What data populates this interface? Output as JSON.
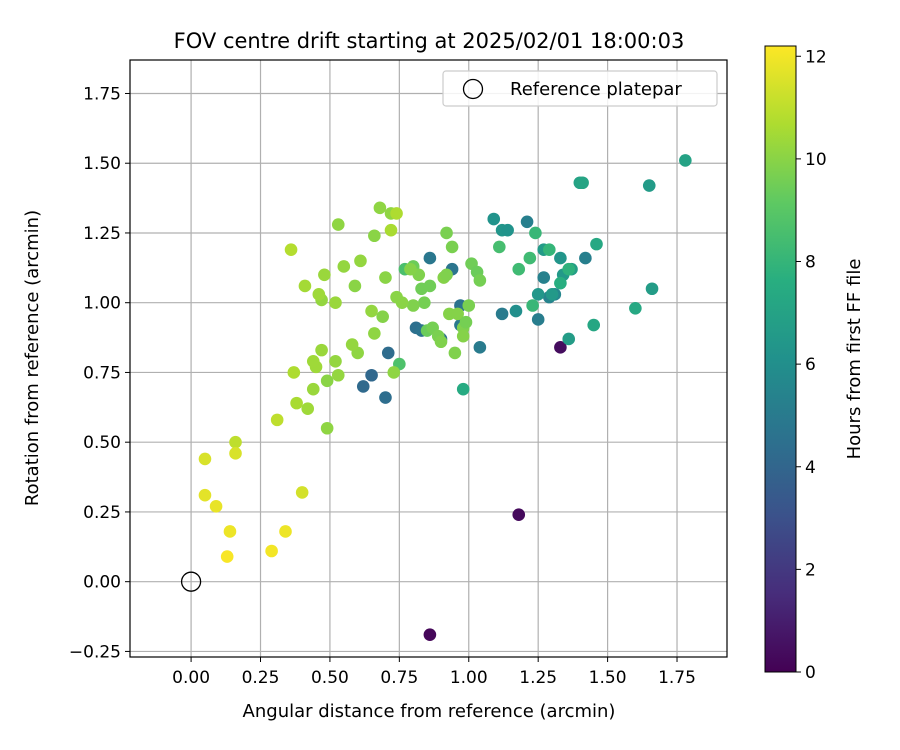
{
  "chart_data": {
    "type": "scatter",
    "title": "FOV centre drift starting at 2025/02/01 18:00:03",
    "xlabel": "Angular distance from reference (arcmin)",
    "ylabel": "Rotation from reference (arcmin)",
    "xlim": [
      -0.22,
      1.93
    ],
    "ylim": [
      -0.27,
      1.87
    ],
    "xticks": [
      0.0,
      0.25,
      0.5,
      0.75,
      1.0,
      1.25,
      1.5,
      1.75
    ],
    "xtick_labels": [
      "0.00",
      "0.25",
      "0.50",
      "0.75",
      "1.00",
      "1.25",
      "1.50",
      "1.75"
    ],
    "yticks": [
      -0.25,
      0.0,
      0.25,
      0.5,
      0.75,
      1.0,
      1.25,
      1.5,
      1.75
    ],
    "ytick_labels": [
      "−0.25",
      "0.00",
      "0.25",
      "0.50",
      "0.75",
      "1.00",
      "1.25",
      "1.50",
      "1.75"
    ],
    "grid": true,
    "legend": {
      "placement": "top-right",
      "entries": [
        "Reference platepar"
      ]
    },
    "reference_point": {
      "x": 0.0,
      "y": 0.0,
      "label": "Reference platepar"
    },
    "colorbar": {
      "label": "Hours from first FF file",
      "range": [
        0,
        12.2
      ],
      "ticks": [
        0,
        2,
        4,
        6,
        8,
        10,
        12
      ],
      "tick_labels": [
        "0",
        "2",
        "4",
        "6",
        "8",
        "10",
        "12"
      ],
      "colormap": "viridis"
    },
    "series": [
      {
        "color_by": "hours",
        "points": [
          [
            0.86,
            -0.19,
            0.2
          ],
          [
            1.18,
            0.24,
            0.3
          ],
          [
            1.33,
            0.84,
            0.4
          ],
          [
            0.62,
            0.7,
            4.2
          ],
          [
            0.65,
            0.74,
            4.1
          ],
          [
            0.7,
            0.66,
            4.4
          ],
          [
            0.71,
            0.82,
            4.3
          ],
          [
            0.81,
            0.91,
            4.5
          ],
          [
            0.83,
            0.9,
            4.6
          ],
          [
            0.86,
            1.16,
            4.8
          ],
          [
            0.9,
            0.87,
            4.5
          ],
          [
            0.94,
            1.12,
            4.7
          ],
          [
            0.97,
            0.99,
            4.6
          ],
          [
            0.97,
            0.92,
            4.9
          ],
          [
            1.04,
            0.84,
            5.0
          ],
          [
            1.12,
            0.96,
            5.0
          ],
          [
            1.21,
            1.29,
            5.2
          ],
          [
            1.25,
            0.94,
            5.1
          ],
          [
            1.27,
            1.09,
            5.3
          ],
          [
            1.29,
            1.02,
            5.4
          ],
          [
            1.31,
            1.03,
            5.6
          ],
          [
            1.42,
            1.16,
            5.2
          ],
          [
            1.09,
            1.3,
            6.2
          ],
          [
            1.12,
            1.26,
            6.3
          ],
          [
            1.14,
            1.26,
            6.2
          ],
          [
            1.17,
            0.97,
            6.0
          ],
          [
            1.25,
            1.03,
            6.4
          ],
          [
            1.27,
            1.19,
            6.6
          ],
          [
            1.3,
            1.03,
            6.5
          ],
          [
            1.33,
            1.16,
            6.3
          ],
          [
            1.34,
            1.1,
            6.5
          ],
          [
            1.36,
            0.87,
            6.7
          ],
          [
            1.37,
            1.12,
            6.8
          ],
          [
            1.4,
            1.43,
            7.0
          ],
          [
            1.41,
            1.43,
            7.1
          ],
          [
            1.45,
            0.92,
            7.2
          ],
          [
            1.46,
            1.21,
            7.3
          ],
          [
            1.6,
            0.98,
            7.3
          ],
          [
            1.65,
            1.42,
            6.6
          ],
          [
            1.66,
            1.05,
            6.7
          ],
          [
            1.78,
            1.51,
            7.0
          ],
          [
            0.98,
            0.69,
            7.4
          ],
          [
            1.33,
            1.07,
            7.6
          ],
          [
            1.36,
            1.12,
            7.8
          ],
          [
            1.29,
            1.19,
            8.0
          ],
          [
            1.24,
            1.25,
            8.1
          ],
          [
            1.22,
            1.16,
            8.3
          ],
          [
            1.18,
            1.12,
            8.3
          ],
          [
            1.23,
            0.99,
            8.1
          ],
          [
            1.11,
            1.2,
            8.5
          ],
          [
            0.77,
            1.12,
            8.6
          ],
          [
            0.75,
            0.78,
            8.7
          ],
          [
            0.8,
            1.13,
            9.4
          ],
          [
            0.83,
            1.05,
            9.5
          ],
          [
            0.84,
            1.0,
            9.6
          ],
          [
            0.85,
            0.9,
            9.4
          ],
          [
            0.86,
            1.06,
            9.5
          ],
          [
            0.87,
            0.91,
            9.6
          ],
          [
            0.89,
            0.88,
            9.7
          ],
          [
            0.9,
            0.86,
            9.8
          ],
          [
            0.91,
            1.09,
            9.9
          ],
          [
            0.92,
            1.1,
            9.8
          ],
          [
            0.93,
            0.96,
            9.9
          ],
          [
            0.94,
            1.2,
            9.7
          ],
          [
            0.95,
            0.82,
            9.8
          ],
          [
            0.96,
            0.96,
            9.9
          ],
          [
            0.98,
            0.91,
            9.8
          ],
          [
            0.98,
            0.88,
            9.9
          ],
          [
            0.99,
            0.93,
            9.6
          ],
          [
            1.0,
            0.99,
            9.7
          ],
          [
            1.01,
            1.14,
            9.5
          ],
          [
            1.03,
            1.11,
            9.4
          ],
          [
            1.04,
            1.08,
            9.6
          ],
          [
            0.92,
            1.25,
            9.7
          ],
          [
            0.82,
            1.1,
            9.8
          ],
          [
            0.8,
            0.99,
            9.8
          ],
          [
            0.79,
            1.12,
            9.9
          ],
          [
            0.76,
            1.0,
            10.0
          ],
          [
            0.74,
            1.02,
            10.0
          ],
          [
            0.73,
            0.75,
            10.1
          ],
          [
            0.72,
            1.32,
            10.1
          ],
          [
            0.7,
            1.09,
            10.0
          ],
          [
            0.69,
            0.95,
            9.9
          ],
          [
            0.68,
            1.34,
            10.1
          ],
          [
            0.66,
            1.24,
            10.0
          ],
          [
            0.66,
            0.89,
            10.1
          ],
          [
            0.65,
            0.97,
            10.2
          ],
          [
            0.61,
            1.15,
            10.2
          ],
          [
            0.6,
            0.82,
            10.1
          ],
          [
            0.59,
            1.06,
            10.0
          ],
          [
            0.58,
            0.85,
            10.2
          ],
          [
            0.55,
            1.13,
            10.2
          ],
          [
            0.53,
            1.28,
            10.1
          ],
          [
            0.53,
            0.74,
            10.2
          ],
          [
            0.52,
            0.79,
            10.2
          ],
          [
            0.52,
            1.0,
            10.3
          ],
          [
            0.49,
            0.72,
            10.0
          ],
          [
            0.49,
            0.55,
            10.1
          ],
          [
            0.48,
            1.1,
            10.3
          ],
          [
            0.47,
            1.01,
            10.2
          ],
          [
            0.47,
            0.83,
            10.3
          ],
          [
            0.46,
            1.03,
            10.4
          ],
          [
            0.45,
            0.77,
            10.4
          ],
          [
            0.44,
            0.69,
            10.3
          ],
          [
            0.44,
            0.79,
            10.4
          ],
          [
            0.42,
            0.62,
            10.4
          ],
          [
            0.41,
            1.06,
            10.5
          ],
          [
            0.38,
            0.64,
            10.6
          ],
          [
            0.37,
            0.75,
            10.7
          ],
          [
            0.36,
            1.19,
            10.8
          ],
          [
            0.74,
            1.32,
            10.7
          ],
          [
            0.72,
            1.26,
            10.6
          ],
          [
            0.31,
            0.58,
            11.0
          ],
          [
            0.16,
            0.5,
            11.0
          ],
          [
            0.4,
            0.32,
            11.4
          ],
          [
            0.05,
            0.44,
            11.5
          ],
          [
            0.16,
            0.46,
            11.5
          ],
          [
            0.05,
            0.31,
            11.7
          ],
          [
            0.09,
            0.27,
            11.8
          ],
          [
            0.14,
            0.18,
            11.9
          ],
          [
            0.34,
            0.18,
            11.9
          ],
          [
            0.29,
            0.11,
            12.0
          ],
          [
            0.13,
            0.09,
            12.1
          ]
        ]
      }
    ]
  }
}
